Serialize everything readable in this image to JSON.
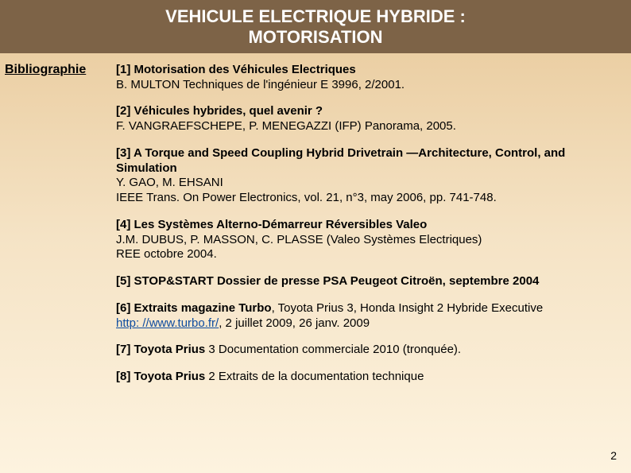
{
  "header": {
    "line1": "VEHICULE ELECTRIQUE HYBRIDE :",
    "line2": "MOTORISATION"
  },
  "section_label": "Bibliographie",
  "refs": [
    {
      "title": "[1] Motorisation des Véhicules Electriques",
      "body": "B. MULTON Techniques de l'ingénieur E 3996, 2/2001."
    },
    {
      "title": "[2] Véhicules hybrides, quel avenir ?",
      "body": "F. VANGRAEFSCHEPE, P. MENEGAZZI (IFP) Panorama, 2005."
    },
    {
      "title": "[3] A Torque and Speed Coupling Hybrid Drivetrain —Architecture, Control, and Simulation",
      "body": "Y. GAO, M. EHSANI\nIEEE Trans. On Power Electronics, vol. 21, n°3, may 2006, pp. 741-748."
    },
    {
      "title": "[4] Les Systèmes Alterno-Démarreur Réversibles Valeo",
      "body": "J.M. DUBUS, P. MASSON, C. PLASSE (Valeo Systèmes Electriques)\nREE octobre 2004."
    },
    {
      "title": "[5] STOP&START Dossier de presse PSA Peugeot Citroën, septembre 2004",
      "body": ""
    },
    {
      "title_prefix": "[6] Extraits magazine Turbo",
      "title_rest": ", Toyota Prius 3, Honda Insight 2 Hybride Executive",
      "link": "http: //www.turbo.fr/",
      "body_rest": ", 2 juillet 2009, 26 janv. 2009"
    },
    {
      "title_prefix": "[7] Toyota Prius",
      "body_inline": " 3 Documentation commerciale 2010 (tronquée)."
    },
    {
      "title_prefix": "[8] Toyota Prius",
      "body_inline": " 2 Extraits de la documentation technique"
    }
  ],
  "page_number": "2"
}
